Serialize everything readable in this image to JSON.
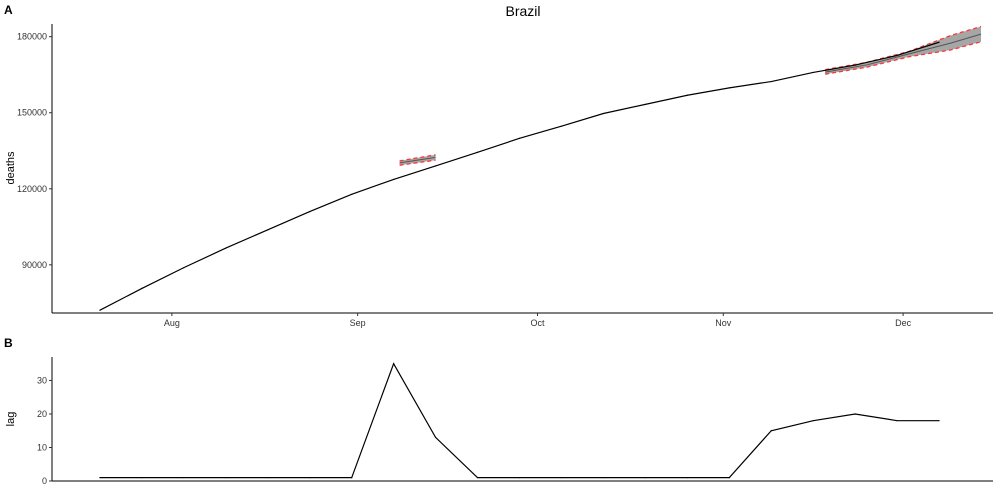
{
  "colors": {
    "line": "#000000",
    "band_fill": "#a6a6a6",
    "band_border": "#ff3333"
  },
  "chart_data": [
    {
      "panel_tag": "A",
      "type": "line",
      "title": "Brazil",
      "xlabel": "",
      "ylabel": "deaths",
      "xlim": [
        "2020-07-12",
        "2020-12-16"
      ],
      "ylim": [
        71000,
        185000
      ],
      "x_ticks": [
        {
          "date": "2020-08-01",
          "label": "Aug"
        },
        {
          "date": "2020-09-01",
          "label": "Sep"
        },
        {
          "date": "2020-10-01",
          "label": "Oct"
        },
        {
          "date": "2020-11-01",
          "label": "Nov"
        },
        {
          "date": "2020-12-01",
          "label": "Dec"
        }
      ],
      "y_ticks": [
        90000,
        120000,
        150000,
        180000
      ],
      "grid": false,
      "series": [
        {
          "points": [
            [
              "2020-07-20",
              72100
            ],
            [
              "2020-07-27",
              80700
            ],
            [
              "2020-08-03",
              88900
            ],
            [
              "2020-08-10",
              96600
            ],
            [
              "2020-08-17",
              103800
            ],
            [
              "2020-08-24",
              111000
            ],
            [
              "2020-08-31",
              117800
            ],
            [
              "2020-09-07",
              123700
            ],
            [
              "2020-09-14",
              129000
            ],
            [
              "2020-09-21",
              134400
            ],
            [
              "2020-09-28",
              139900
            ],
            [
              "2020-10-05",
              144700
            ],
            [
              "2020-10-12",
              149700
            ],
            [
              "2020-10-19",
              153300
            ],
            [
              "2020-10-26",
              156900
            ],
            [
              "2020-11-02",
              159800
            ],
            [
              "2020-11-09",
              162300
            ],
            [
              "2020-11-16",
              165900
            ],
            [
              "2020-11-23",
              168800
            ],
            [
              "2020-11-30",
              172600
            ],
            [
              "2020-12-07",
              177800
            ]
          ]
        }
      ],
      "bands": [
        {
          "upper": [
            [
              "2020-09-08",
              131000
            ],
            [
              "2020-09-14",
              133400
            ]
          ],
          "mid": [
            [
              "2020-09-08",
              130200
            ],
            [
              "2020-09-14",
              132400
            ]
          ],
          "lower": [
            [
              "2020-09-08",
              129300
            ],
            [
              "2020-09-14",
              131300
            ]
          ]
        },
        {
          "upper": [
            [
              "2020-11-18",
              167000
            ],
            [
              "2020-11-25",
              169900
            ],
            [
              "2020-12-02",
              174200
            ],
            [
              "2020-12-09",
              180500
            ],
            [
              "2020-12-14",
              184000
            ]
          ],
          "mid": [
            [
              "2020-11-18",
              166000
            ],
            [
              "2020-11-25",
              168900
            ],
            [
              "2020-12-02",
              173200
            ],
            [
              "2020-12-09",
              177500
            ],
            [
              "2020-12-14",
              181000
            ]
          ],
          "lower": [
            [
              "2020-11-18",
              165200
            ],
            [
              "2020-11-25",
              168000
            ],
            [
              "2020-12-02",
              172100
            ],
            [
              "2020-12-09",
              174800
            ],
            [
              "2020-12-14",
              178000
            ]
          ]
        }
      ]
    },
    {
      "panel_tag": "B",
      "type": "line",
      "title": "",
      "xlabel": "",
      "ylabel": "lag",
      "xlim": [
        "2020-07-12",
        "2020-12-16"
      ],
      "ylim": [
        0,
        37
      ],
      "y_ticks": [
        0,
        10,
        20,
        30
      ],
      "grid": false,
      "series": [
        {
          "points": [
            [
              "2020-07-20",
              1
            ],
            [
              "2020-07-27",
              1
            ],
            [
              "2020-08-03",
              1
            ],
            [
              "2020-08-10",
              1
            ],
            [
              "2020-08-17",
              1
            ],
            [
              "2020-08-24",
              1
            ],
            [
              "2020-08-31",
              1
            ],
            [
              "2020-09-07",
              35
            ],
            [
              "2020-09-14",
              13
            ],
            [
              "2020-09-21",
              1
            ],
            [
              "2020-09-28",
              1
            ],
            [
              "2020-10-05",
              1
            ],
            [
              "2020-10-12",
              1
            ],
            [
              "2020-10-19",
              1
            ],
            [
              "2020-10-26",
              1
            ],
            [
              "2020-11-02",
              1
            ],
            [
              "2020-11-09",
              15
            ],
            [
              "2020-11-16",
              18
            ],
            [
              "2020-11-23",
              20
            ],
            [
              "2020-11-30",
              18
            ],
            [
              "2020-12-07",
              18
            ]
          ]
        }
      ]
    }
  ]
}
